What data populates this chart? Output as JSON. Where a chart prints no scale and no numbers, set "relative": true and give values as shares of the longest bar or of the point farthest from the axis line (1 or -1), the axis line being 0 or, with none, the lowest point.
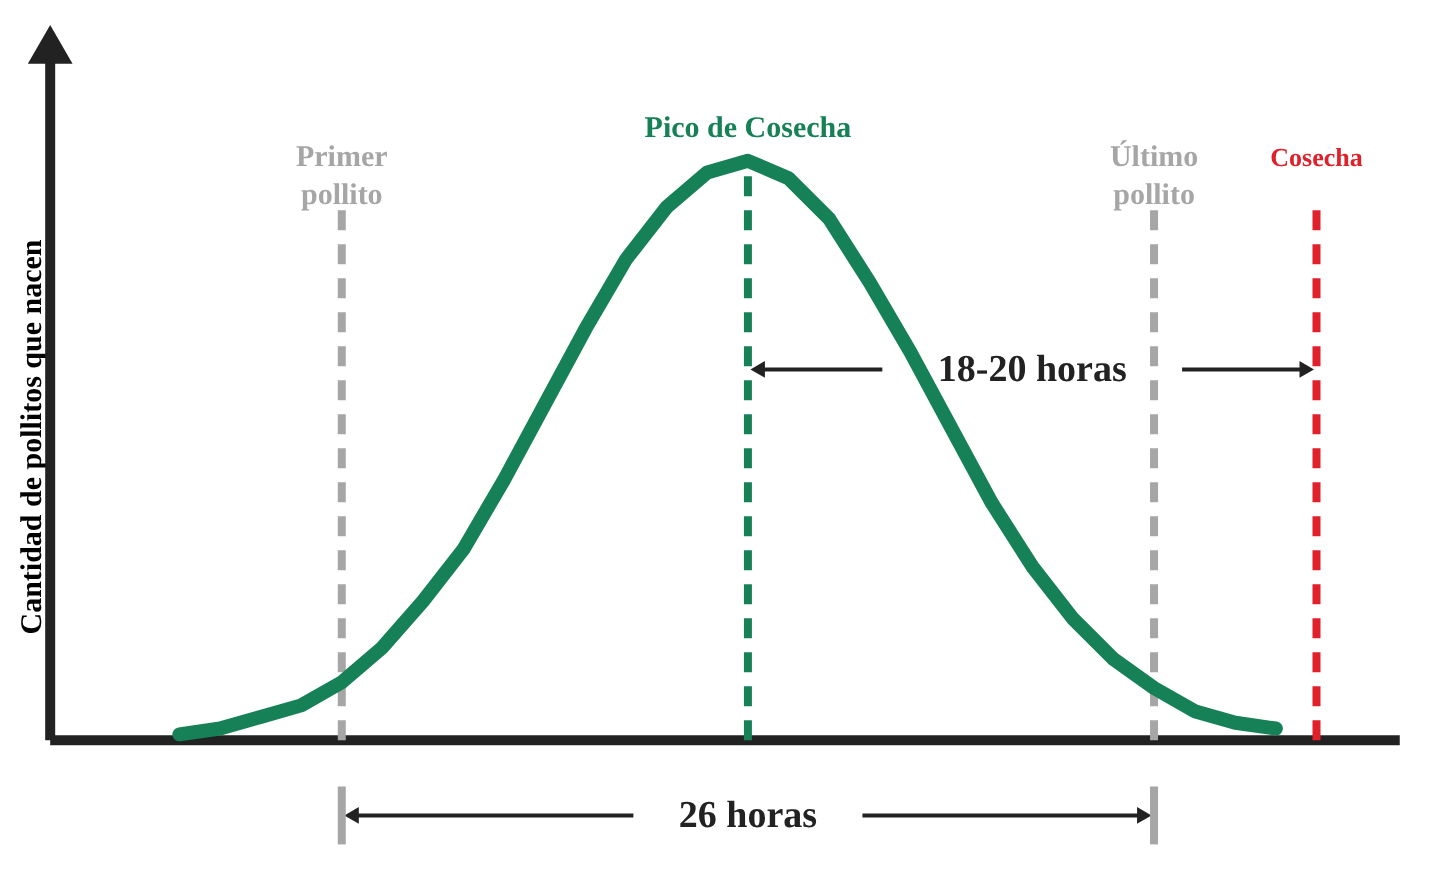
{
  "chart_data": {
    "type": "line",
    "relative": true,
    "ylabel": "Cantidad de pollitos que nacen",
    "categories": [
      null,
      null,
      null,
      null,
      null,
      null,
      null,
      null,
      null,
      null,
      null,
      null,
      null,
      null,
      null,
      null,
      null,
      null,
      null,
      null,
      null,
      null,
      null,
      null,
      null,
      null,
      null,
      null,
      null
    ],
    "tick_labels": false,
    "grid": false,
    "line_style": "solid",
    "marker": "none",
    "series": [
      {
        "color": "#168057",
        "values": [
          0.01,
          0.02,
          0.04,
          0.06,
          0.1,
          0.16,
          0.24,
          0.33,
          0.45,
          0.58,
          0.71,
          0.83,
          0.92,
          0.98,
          1.0,
          0.97,
          0.9,
          0.79,
          0.67,
          0.54,
          0.41,
          0.3,
          0.21,
          0.14,
          0.09,
          0.05,
          0.03,
          0.02,
          null
        ]
      }
    ],
    "annotations": [
      "Primer\npollito",
      "Pico de Cosecha",
      "Último\npollito",
      "Cosecha",
      "18-20 horas",
      "26 horas"
    ]
  }
}
